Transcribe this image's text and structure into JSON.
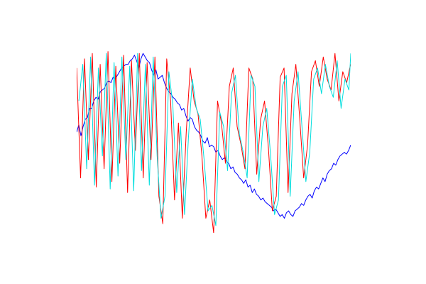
{
  "chart_data": {
    "type": "line",
    "title": "",
    "xlabel": "",
    "ylabel": "",
    "grid": false,
    "legend": "none",
    "xlim": [
      0,
      100
    ],
    "ylim": [
      0,
      100
    ],
    "x_step": 1,
    "series": [
      {
        "color": "#0000ff",
        "values": [
          55,
          59,
          53,
          58,
          62,
          63,
          68,
          68,
          72,
          74,
          73,
          77,
          78,
          79,
          82,
          83,
          82,
          85,
          84,
          86,
          88,
          90,
          91,
          92,
          92,
          94,
          95,
          97,
          94,
          90,
          95,
          98,
          96,
          94,
          93,
          89,
          86,
          89,
          84,
          85,
          86,
          82,
          79,
          77,
          76,
          74,
          73,
          71,
          70,
          67,
          68,
          64,
          61,
          63,
          62,
          58,
          56,
          55,
          53,
          50,
          49,
          52,
          47,
          48,
          47,
          44,
          45,
          42,
          40,
          41,
          39,
          38,
          35,
          36,
          33,
          32,
          30,
          29,
          27,
          29,
          25,
          26,
          22,
          24,
          21,
          20,
          18,
          19,
          17,
          16,
          15,
          14,
          12,
          13,
          11,
          9,
          10,
          8,
          11,
          12,
          10,
          9,
          12,
          13,
          14,
          16,
          15,
          18,
          20,
          21,
          19,
          23,
          25,
          24,
          27,
          30,
          28,
          32,
          34,
          35,
          38,
          37,
          40,
          42,
          43,
          44,
          43,
          45,
          48
        ],
        "x_start": 0,
        "x_step": 0.78125
      },
      {
        "color": "#ff0000",
        "values": [
          90,
          30,
          95,
          40,
          98,
          25,
          92,
          35,
          99,
          28,
          91,
          38,
          97,
          22,
          94,
          45,
          98,
          30,
          93,
          40,
          96,
          20,
          5,
          95,
          72,
          18,
          60,
          8,
          55,
          90,
          72,
          65,
          42,
          8,
          18,
          0,
          72,
          60,
          38,
          80,
          90,
          58,
          48,
          35,
          90,
          84,
          32,
          62,
          72,
          46,
          12,
          20,
          85,
          90,
          22,
          76,
          92,
          62,
          30,
          48,
          88,
          94,
          80,
          96,
          84,
          78,
          98,
          72,
          88,
          82,
          92
        ],
        "x_start": 0,
        "x_step": 1.428
      },
      {
        "color": "#00dede",
        "values": [
          72,
          92,
          35,
          96,
          26,
          90,
          42,
          98,
          24,
          93,
          31,
          96,
          40,
          91,
          23,
          98,
          34,
          92,
          26,
          96,
          42,
          8,
          20,
          88,
          70,
          22,
          58,
          10,
          52,
          84,
          68,
          62,
          40,
          12,
          15,
          4,
          66,
          58,
          34,
          76,
          86,
          54,
          44,
          30,
          86,
          80,
          28,
          58,
          68,
          42,
          10,
          18,
          80,
          86,
          20,
          72,
          88,
          58,
          28,
          44,
          84,
          90,
          76,
          92,
          80,
          74,
          94,
          68,
          84,
          78,
          98
        ],
        "x_start": 0.8,
        "x_step": 1.428
      }
    ]
  }
}
